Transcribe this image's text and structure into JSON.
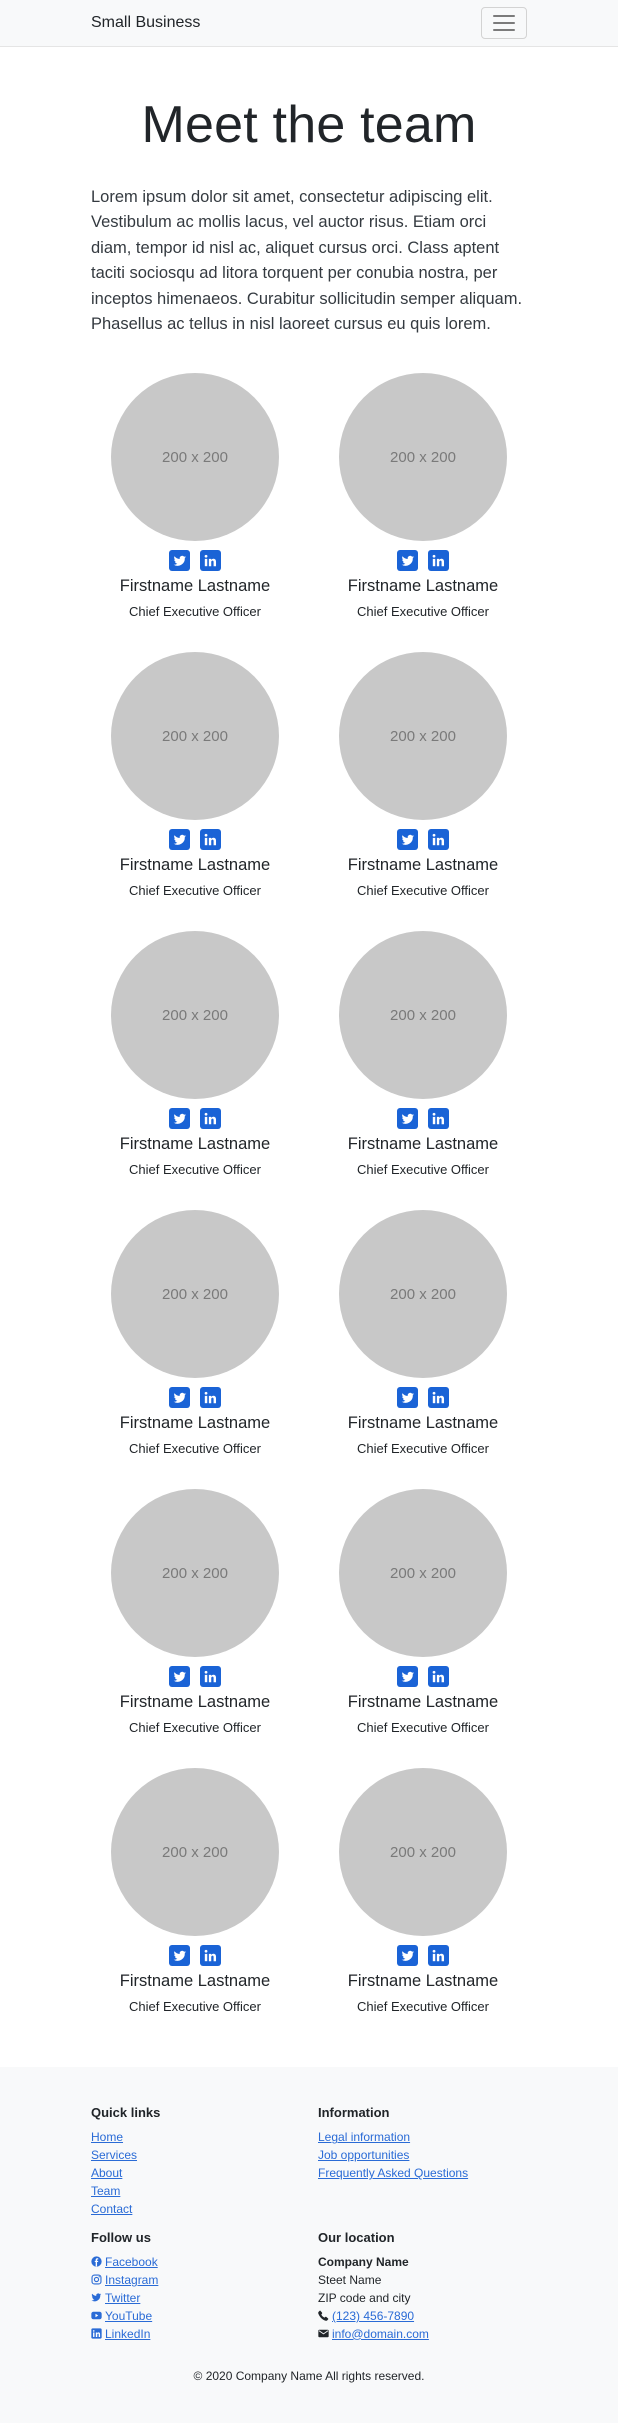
{
  "nav": {
    "brand": "Small Business",
    "toggle_icon": "hamburger-icon"
  },
  "hero": {
    "title": "Meet the team",
    "lead": "Lorem ipsum dolor sit amet, consectetur adipiscing elit. Vestibulum ac mollis lacus, vel auctor risus. Etiam orci diam, tempor id nisl ac, aliquet cursus orci. Class aptent taciti sociosqu ad litora torquent per conubia nostra, per inceptos himenaeos. Curabitur sollicitudin semper aliquam. Phasellus ac tellus in nisl laoreet cursus eu quis lorem."
  },
  "team": [
    {
      "placeholder": "200 x 200",
      "name": "Firstname Lastname",
      "role": "Chief Executive Officer"
    },
    {
      "placeholder": "200 x 200",
      "name": "Firstname Lastname",
      "role": "Chief Executive Officer"
    },
    {
      "placeholder": "200 x 200",
      "name": "Firstname Lastname",
      "role": "Chief Executive Officer"
    },
    {
      "placeholder": "200 x 200",
      "name": "Firstname Lastname",
      "role": "Chief Executive Officer"
    },
    {
      "placeholder": "200 x 200",
      "name": "Firstname Lastname",
      "role": "Chief Executive Officer"
    },
    {
      "placeholder": "200 x 200",
      "name": "Firstname Lastname",
      "role": "Chief Executive Officer"
    },
    {
      "placeholder": "200 x 200",
      "name": "Firstname Lastname",
      "role": "Chief Executive Officer"
    },
    {
      "placeholder": "200 x 200",
      "name": "Firstname Lastname",
      "role": "Chief Executive Officer"
    },
    {
      "placeholder": "200 x 200",
      "name": "Firstname Lastname",
      "role": "Chief Executive Officer"
    },
    {
      "placeholder": "200 x 200",
      "name": "Firstname Lastname",
      "role": "Chief Executive Officer"
    },
    {
      "placeholder": "200 x 200",
      "name": "Firstname Lastname",
      "role": "Chief Executive Officer"
    },
    {
      "placeholder": "200 x 200",
      "name": "Firstname Lastname",
      "role": "Chief Executive Officer"
    }
  ],
  "footer": {
    "quick_links": {
      "title": "Quick links",
      "items": [
        "Home",
        "Services",
        "About",
        "Team",
        "Contact"
      ]
    },
    "information": {
      "title": "Information",
      "items": [
        "Legal information",
        "Job opportunities",
        "Frequently Asked Questions"
      ]
    },
    "follow_us": {
      "title": "Follow us",
      "items": [
        "Facebook",
        "Instagram",
        "Twitter",
        "YouTube",
        "LinkedIn"
      ]
    },
    "location": {
      "title": "Our location",
      "company": "Company Name",
      "street": "Steet Name",
      "city": "ZIP code and city",
      "phone": "(123) 456-7890",
      "email": "info@domain.com"
    },
    "copyright": "© 2020 Company Name    All rights reserved."
  },
  "colors": {
    "accent": "#1a63d6",
    "link": "#2a6bd6",
    "avatar": "#c8c8c8",
    "footer_bg": "#f8f9fa"
  }
}
